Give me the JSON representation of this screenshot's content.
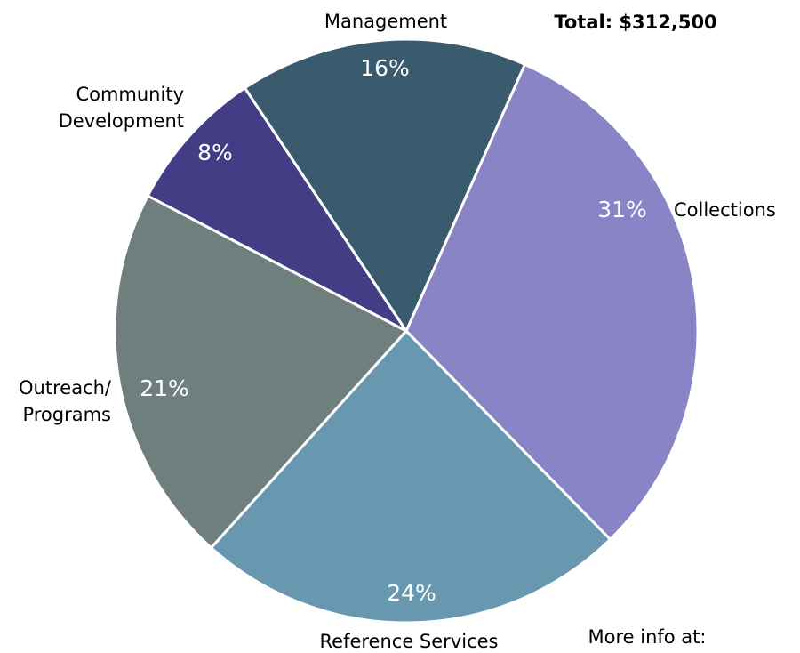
{
  "chart_data": {
    "type": "pie",
    "annotations": [
      "Total: $312,500",
      "More info at:"
    ],
    "categories": [
      "Collections",
      "Reference Services",
      "Outreach/\nPrograms",
      "Community\nDevelopment",
      "Management"
    ],
    "values": [
      31,
      24,
      21,
      8,
      16
    ],
    "value_labels": [
      "31%",
      "24%",
      "21%",
      "8%",
      "16%"
    ],
    "colors": [
      "#8884c6",
      "#6898b0",
      "#6e7f7e",
      "#433d85",
      "#3a5a6e"
    ]
  }
}
